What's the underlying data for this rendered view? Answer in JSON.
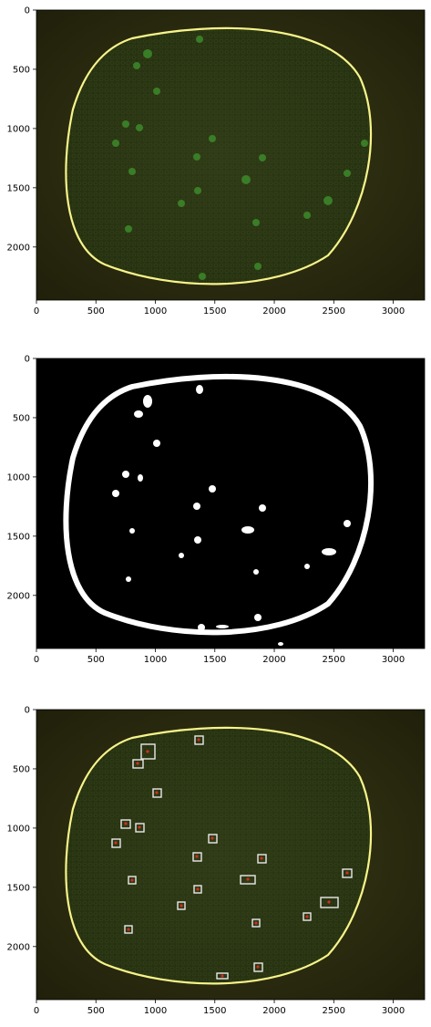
{
  "figure": {
    "panels": [
      {
        "name": "raw-photo",
        "x_ticks": [
          "0",
          "500",
          "1000",
          "1500",
          "2000",
          "2500",
          "3000"
        ],
        "y_ticks": [
          "0",
          "500",
          "1000",
          "1500",
          "2000"
        ]
      },
      {
        "name": "binary-mask",
        "x_ticks": [
          "0",
          "500",
          "1000",
          "1500",
          "2000",
          "2500",
          "3000"
        ],
        "y_ticks": [
          "0",
          "500",
          "1000",
          "1500",
          "2000"
        ]
      },
      {
        "name": "detections-overlay",
        "x_ticks": [
          "0",
          "500",
          "1000",
          "1500",
          "2000",
          "2500",
          "3000"
        ],
        "y_ticks": [
          "0",
          "500",
          "1000",
          "1500",
          "2000"
        ]
      }
    ],
    "colors": {
      "background_photo": "#2a2a10",
      "rim_yellow": "#f7f48a",
      "spot_green": "#3c8a2a",
      "mask_white": "#ffffff",
      "mask_black": "#000000",
      "box_white": "#e9e9e9",
      "mark_red": "#d03020"
    }
  }
}
